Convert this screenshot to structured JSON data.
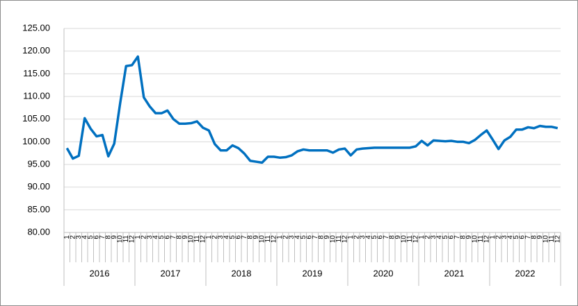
{
  "chart_data": {
    "type": "line",
    "categories": [
      "1",
      "2",
      "3",
      "4",
      "5",
      "6",
      "7",
      "8",
      "9",
      "10",
      "11",
      "12",
      "1",
      "2",
      "3",
      "4",
      "5",
      "6",
      "7",
      "8",
      "9",
      "10",
      "11",
      "12",
      "1",
      "2",
      "3",
      "4",
      "5",
      "6",
      "7",
      "8",
      "9",
      "10",
      "11",
      "12",
      "1",
      "2",
      "3",
      "4",
      "5",
      "6",
      "7",
      "8",
      "9",
      "10",
      "11",
      "12",
      "1",
      "2",
      "3",
      "4",
      "5",
      "6",
      "7",
      "8",
      "9",
      "10",
      "11",
      "12",
      "1",
      "2",
      "3",
      "4",
      "5",
      "6",
      "7",
      "8",
      "9",
      "10",
      "11",
      "12",
      "1",
      "2",
      "3",
      "4",
      "5",
      "6",
      "7",
      "8",
      "9",
      "10",
      "11",
      "12"
    ],
    "years": [
      "2016",
      "2017",
      "2018",
      "2019",
      "2020",
      "2021",
      "2022"
    ],
    "values": [
      98.6,
      96.3,
      96.9,
      105.2,
      102.9,
      101.2,
      101.5,
      96.8,
      99.6,
      108.5,
      116.7,
      116.9,
      118.8,
      109.8,
      107.8,
      106.3,
      106.3,
      106.9,
      105.0,
      104.0,
      104.0,
      104.1,
      104.5,
      103.1,
      102.5,
      99.5,
      98.1,
      98.1,
      99.2,
      98.6,
      97.4,
      95.8,
      95.6,
      95.4,
      96.7,
      96.7,
      96.5,
      96.6,
      97.0,
      97.9,
      98.3,
      98.1,
      98.1,
      98.1,
      98.1,
      97.6,
      98.3,
      98.5,
      97.0,
      98.3,
      98.5,
      98.6,
      98.7,
      98.7,
      98.7,
      98.7,
      98.7,
      98.7,
      98.7,
      99.0,
      100.2,
      99.2,
      100.3,
      100.2,
      100.1,
      100.2,
      100.0,
      100.0,
      99.7,
      100.4,
      101.5,
      102.5,
      100.5,
      98.4,
      100.3,
      101.1,
      102.7,
      102.7,
      103.2,
      103.0,
      103.5,
      103.3,
      103.3,
      103.0
    ],
    "color": "#0070c0",
    "ylim": [
      80,
      125
    ],
    "yticks": [
      {
        "value": 80,
        "label": "80.00"
      },
      {
        "value": 85,
        "label": "85.00"
      },
      {
        "value": 90,
        "label": "90.00"
      },
      {
        "value": 95,
        "label": "95.00"
      },
      {
        "value": 100,
        "label": "100.00"
      },
      {
        "value": 105,
        "label": "105.00"
      },
      {
        "value": 110,
        "label": "110.00"
      },
      {
        "value": 115,
        "label": "115.00"
      },
      {
        "value": 120,
        "label": "120.00"
      },
      {
        "value": 125,
        "label": "125.00"
      }
    ],
    "grid": true
  }
}
